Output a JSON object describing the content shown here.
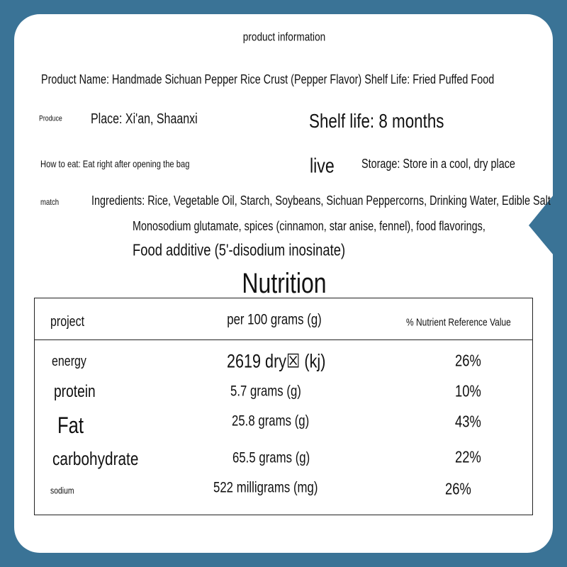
{
  "header": {
    "title": "product information"
  },
  "info": {
    "product_name": "Product Name: Handmade Sichuan Pepper Rice Crust (Pepper Flavor) Shelf Life: Fried Puffed Food",
    "produce_label": "Produce",
    "place": "Place: Xi'an, Shaanxi",
    "shelf_life": "Shelf life: 8 months",
    "how_to_eat": "How to eat: Eat right after opening the bag",
    "live_label": "live",
    "storage": "Storage: Store in a cool, dry place",
    "match_label": "match",
    "ingredients": [
      "Ingredients: Rice, Vegetable Oil, Starch, Soybeans, Sichuan Peppercorns, Drinking Water, Edible Salt",
      "Monosodium glutamate, spices (cinnamon, star anise, fennel), food flavorings,",
      "Food additive (5'-disodium inosinate)"
    ]
  },
  "nutrition": {
    "title": "Nutrition",
    "table": {
      "header": [
        "project",
        "per 100 grams (g)",
        "% Nutrient Reference Value"
      ],
      "rows": [
        [
          "energy",
          "2619 dry☒ (kj)",
          "26%"
        ],
        [
          "protein",
          "5.7 grams (g)",
          "10%"
        ],
        [
          "Fat",
          "25.8 grams (g)",
          "43%"
        ],
        [
          "carbohydrate",
          "65.5 grams (g)",
          "22%"
        ],
        [
          "sodium",
          "522 milligrams (mg)",
          "26%"
        ]
      ]
    }
  }
}
